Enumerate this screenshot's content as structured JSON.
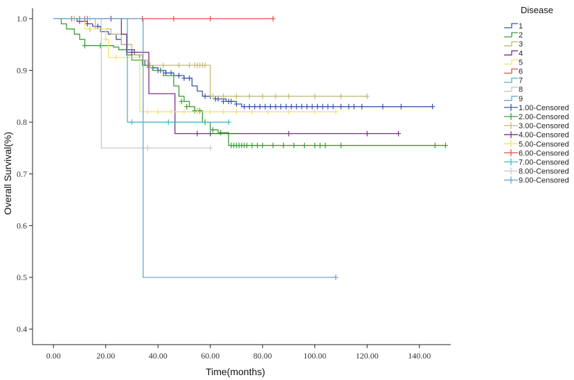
{
  "chart_data": {
    "type": "line",
    "title": "",
    "xlabel": "Time(months)",
    "ylabel": "Overall Survival(%)",
    "xlim": [
      -8,
      152
    ],
    "ylim": [
      0.37,
      1.02
    ],
    "xticks": [
      0,
      20,
      40,
      60,
      80,
      100,
      120,
      140
    ],
    "xtick_labels": [
      "0.00",
      "20.00",
      "40.00",
      "60.00",
      "80.00",
      "100.00",
      "120.00",
      "140.00"
    ],
    "yticks": [
      0.4,
      0.5,
      0.6,
      0.7,
      0.8,
      0.9,
      1.0
    ],
    "ytick_labels": [
      "0.4",
      "0.5",
      "0.6",
      "0.7",
      "0.8",
      "0.9",
      "1.0"
    ],
    "grid": false,
    "legend": {
      "title": "Disease",
      "position": "right",
      "entries": [
        "1",
        "2",
        "3",
        "4",
        "5",
        "6",
        "7",
        "8",
        "9",
        "1.00-Censored",
        "2.00-Censored",
        "3.00-Censored",
        "4.00-Censored",
        "5.00-Censored",
        "6.00-Censored",
        "7.00-Censored",
        "8.00-Censored",
        "9.00-Censored"
      ]
    },
    "series": [
      {
        "name": "1",
        "color": "#3a56a8",
        "steps": [
          [
            0,
            1.0
          ],
          [
            9,
            0.995
          ],
          [
            13,
            0.99
          ],
          [
            15,
            0.985
          ],
          [
            18,
            0.975
          ],
          [
            21,
            0.97
          ],
          [
            24,
            0.96
          ],
          [
            26,
            0.95
          ],
          [
            28,
            0.94
          ],
          [
            31,
            0.93
          ],
          [
            33,
            0.92
          ],
          [
            35,
            0.91
          ],
          [
            38,
            0.905
          ],
          [
            40,
            0.9
          ],
          [
            43,
            0.895
          ],
          [
            46,
            0.89
          ],
          [
            50,
            0.885
          ],
          [
            53,
            0.87
          ],
          [
            55,
            0.86
          ],
          [
            57,
            0.85
          ],
          [
            62,
            0.845
          ],
          [
            66,
            0.84
          ],
          [
            70,
            0.835
          ],
          [
            72,
            0.83
          ],
          [
            145,
            0.83
          ]
        ],
        "censored": [
          [
            10,
            0.995
          ],
          [
            13,
            0.99
          ],
          [
            17,
            0.985
          ],
          [
            36,
            0.91
          ],
          [
            38,
            0.905
          ],
          [
            40,
            0.9
          ],
          [
            41,
            0.9
          ],
          [
            43,
            0.895
          ],
          [
            45,
            0.895
          ],
          [
            48,
            0.89
          ],
          [
            50,
            0.885
          ],
          [
            52,
            0.885
          ],
          [
            58,
            0.85
          ],
          [
            60,
            0.85
          ],
          [
            62,
            0.845
          ],
          [
            63,
            0.845
          ],
          [
            65,
            0.84
          ],
          [
            67,
            0.84
          ],
          [
            68,
            0.84
          ],
          [
            70,
            0.835
          ],
          [
            73,
            0.83
          ],
          [
            75,
            0.83
          ],
          [
            77,
            0.83
          ],
          [
            79,
            0.83
          ],
          [
            81,
            0.83
          ],
          [
            83,
            0.83
          ],
          [
            85,
            0.83
          ],
          [
            87,
            0.83
          ],
          [
            89,
            0.83
          ],
          [
            91,
            0.83
          ],
          [
            93,
            0.83
          ],
          [
            95,
            0.83
          ],
          [
            97,
            0.83
          ],
          [
            99,
            0.83
          ],
          [
            101,
            0.83
          ],
          [
            103,
            0.83
          ],
          [
            105,
            0.83
          ],
          [
            107,
            0.83
          ],
          [
            110,
            0.83
          ],
          [
            113,
            0.83
          ],
          [
            115,
            0.83
          ],
          [
            118,
            0.83
          ],
          [
            126,
            0.83
          ],
          [
            133,
            0.83
          ],
          [
            145,
            0.83
          ]
        ]
      },
      {
        "name": "2",
        "color": "#3a9a3a",
        "steps": [
          [
            0,
            1.0
          ],
          [
            3,
            0.99
          ],
          [
            5,
            0.98
          ],
          [
            8,
            0.97
          ],
          [
            10,
            0.96
          ],
          [
            12,
            0.948
          ],
          [
            20,
            0.948
          ],
          [
            23,
            0.945
          ],
          [
            25,
            0.94
          ],
          [
            28,
            0.93
          ],
          [
            30,
            0.92
          ],
          [
            34,
            0.91
          ],
          [
            38,
            0.9
          ],
          [
            42,
            0.89
          ],
          [
            46,
            0.87
          ],
          [
            48,
            0.85
          ],
          [
            50,
            0.84
          ],
          [
            52,
            0.83
          ],
          [
            54,
            0.822
          ],
          [
            57,
            0.8
          ],
          [
            60,
            0.785
          ],
          [
            63,
            0.78
          ],
          [
            67,
            0.755
          ],
          [
            150,
            0.755
          ]
        ],
        "censored": [
          [
            12,
            0.948
          ],
          [
            18,
            0.948
          ],
          [
            36,
            0.91
          ],
          [
            49,
            0.84
          ],
          [
            51,
            0.83
          ],
          [
            54,
            0.822
          ],
          [
            55,
            0.822
          ],
          [
            56,
            0.822
          ],
          [
            58,
            0.8
          ],
          [
            61,
            0.785
          ],
          [
            64,
            0.78
          ],
          [
            68,
            0.755
          ],
          [
            69,
            0.755
          ],
          [
            70,
            0.755
          ],
          [
            71,
            0.755
          ],
          [
            72,
            0.755
          ],
          [
            73,
            0.755
          ],
          [
            74,
            0.755
          ],
          [
            76,
            0.755
          ],
          [
            78,
            0.755
          ],
          [
            80,
            0.755
          ],
          [
            84,
            0.755
          ],
          [
            88,
            0.755
          ],
          [
            92,
            0.755
          ],
          [
            96,
            0.755
          ],
          [
            100,
            0.755
          ],
          [
            102,
            0.755
          ],
          [
            104,
            0.755
          ],
          [
            110,
            0.755
          ],
          [
            146,
            0.755
          ],
          [
            150,
            0.755
          ]
        ]
      },
      {
        "name": "3",
        "color": "#c2b97a",
        "steps": [
          [
            0,
            1.0
          ],
          [
            16,
            0.98
          ],
          [
            22,
            0.97
          ],
          [
            26,
            0.95
          ],
          [
            30,
            0.93
          ],
          [
            34,
            0.92
          ],
          [
            36,
            0.91
          ],
          [
            60,
            0.85
          ],
          [
            120,
            0.85
          ]
        ],
        "censored": [
          [
            8,
            1.0
          ],
          [
            14,
            0.98
          ],
          [
            37,
            0.91
          ],
          [
            42,
            0.91
          ],
          [
            48,
            0.91
          ],
          [
            52,
            0.91
          ],
          [
            54,
            0.91
          ],
          [
            55,
            0.91
          ],
          [
            56,
            0.91
          ],
          [
            57,
            0.91
          ],
          [
            58,
            0.91
          ],
          [
            61,
            0.85
          ],
          [
            65,
            0.85
          ],
          [
            70,
            0.85
          ],
          [
            75,
            0.85
          ],
          [
            80,
            0.85
          ],
          [
            85,
            0.85
          ],
          [
            90,
            0.85
          ],
          [
            100,
            0.85
          ],
          [
            110,
            0.85
          ],
          [
            120,
            0.85
          ]
        ]
      },
      {
        "name": "4",
        "color": "#7a2f86",
        "steps": [
          [
            0,
            1.0
          ],
          [
            26,
            0.97
          ],
          [
            28,
            0.935
          ],
          [
            36,
            0.935
          ],
          [
            36.5,
            0.855
          ],
          [
            46,
            0.855
          ],
          [
            46.5,
            0.778
          ],
          [
            132,
            0.778
          ]
        ],
        "censored": [
          [
            22,
            1.0
          ],
          [
            30,
            0.935
          ],
          [
            55,
            0.778
          ],
          [
            60,
            0.778
          ],
          [
            90,
            0.778
          ],
          [
            120,
            0.778
          ],
          [
            132,
            0.778
          ]
        ]
      },
      {
        "name": "5",
        "color": "#efe66a",
        "steps": [
          [
            0,
            1.0
          ],
          [
            12,
            0.98
          ],
          [
            20,
            0.96
          ],
          [
            21,
            0.925
          ],
          [
            32,
            0.925
          ],
          [
            33,
            0.82
          ],
          [
            108,
            0.82
          ]
        ],
        "censored": [
          [
            20,
            0.96
          ],
          [
            24,
            0.925
          ],
          [
            36,
            0.82
          ],
          [
            40,
            0.82
          ],
          [
            45,
            0.82
          ],
          [
            50,
            0.82
          ],
          [
            55,
            0.82
          ],
          [
            60,
            0.82
          ],
          [
            65,
            0.82
          ],
          [
            70,
            0.82
          ],
          [
            76,
            0.82
          ],
          [
            82,
            0.82
          ],
          [
            90,
            0.82
          ],
          [
            100,
            0.82
          ],
          [
            108,
            0.82
          ]
        ]
      },
      {
        "name": "6",
        "color": "#e05048",
        "steps": [
          [
            0,
            1.0
          ],
          [
            84,
            1.0
          ]
        ],
        "censored": [
          [
            7,
            1.0
          ],
          [
            10,
            1.0
          ],
          [
            12,
            1.0
          ],
          [
            13,
            1.0
          ],
          [
            34,
            1.0
          ],
          [
            46,
            1.0
          ],
          [
            60,
            1.0
          ],
          [
            84,
            1.0
          ]
        ]
      },
      {
        "name": "7",
        "color": "#45b8c4",
        "steps": [
          [
            0,
            1.0
          ],
          [
            28,
            1.0
          ],
          [
            28.3,
            0.8
          ],
          [
            67,
            0.8
          ]
        ],
        "censored": [
          [
            30,
            0.8
          ],
          [
            44,
            0.8
          ],
          [
            67,
            0.8
          ]
        ]
      },
      {
        "name": "8",
        "color": "#c9c9c9",
        "steps": [
          [
            0,
            1.0
          ],
          [
            18,
            1.0
          ],
          [
            18.3,
            0.75
          ],
          [
            60,
            0.75
          ]
        ],
        "censored": [
          [
            14,
            1.0
          ],
          [
            36,
            0.75
          ],
          [
            60,
            0.75
          ]
        ]
      },
      {
        "name": "9",
        "color": "#6aa6d2",
        "steps": [
          [
            0,
            1.0
          ],
          [
            34,
            1.0
          ],
          [
            34.3,
            0.5
          ],
          [
            108,
            0.5
          ]
        ],
        "censored": [
          [
            108,
            0.5
          ]
        ]
      }
    ]
  }
}
